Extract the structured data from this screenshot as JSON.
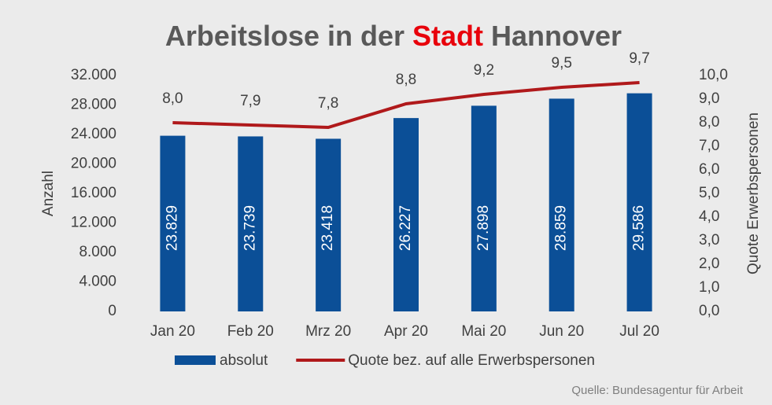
{
  "chart_data": {
    "type": "bar",
    "title": [
      {
        "text": "Arbeitslose in der",
        "color": "#595959"
      },
      {
        "text": "Stadt",
        "color": "#e8000b"
      },
      {
        "text": "Hannover",
        "color": "#595959"
      }
    ],
    "categories": [
      "Jan 20",
      "Feb 20",
      "Mrz 20",
      "Apr 20",
      "Mai 20",
      "Jun 20",
      "Jul 20"
    ],
    "series": [
      {
        "name": "absolut",
        "type": "bar",
        "color": "#0b4f97",
        "values": [
          23829,
          23739,
          23418,
          26227,
          27898,
          28859,
          29586
        ],
        "value_labels": [
          "23.829",
          "23.739",
          "23.418",
          "26.227",
          "27.898",
          "28.859",
          "29.586"
        ]
      },
      {
        "name": "Quote bez. auf alle Erwerbspersonen",
        "type": "line",
        "axis": "y2",
        "color": "#b0191b",
        "values": [
          8.0,
          7.9,
          7.8,
          8.8,
          9.2,
          9.5,
          9.7
        ],
        "value_labels": [
          "8,0",
          "7,9",
          "7,8",
          "8,8",
          "9,2",
          "9,5",
          "9,7"
        ]
      }
    ],
    "ylabel": "Anzahl",
    "y2label": "Quote Erwerbspersonen",
    "ylim": [
      0,
      32000
    ],
    "yticks": [
      0,
      {
        "value": 4000,
        "label": "4.000"
      },
      {
        "value": 8000,
        "label": "8.000"
      },
      {
        "value": 12000,
        "label": "12.000"
      },
      {
        "value": 16000,
        "label": "16.000"
      },
      {
        "value": 20000,
        "label": "20.000"
      },
      {
        "value": 24000,
        "label": "24.000"
      },
      {
        "value": 28000,
        "label": "28.000"
      },
      {
        "value": 32000,
        "label": "32.000"
      }
    ],
    "y2lim": [
      0,
      10
    ],
    "y2ticks": [
      {
        "value": 0,
        "label": "0,0"
      },
      {
        "value": 1,
        "label": "1,0"
      },
      {
        "value": 2,
        "label": "2,0"
      },
      {
        "value": 3,
        "label": "3,0"
      },
      {
        "value": 4,
        "label": "4,0"
      },
      {
        "value": 5,
        "label": "5,0"
      },
      {
        "value": 6,
        "label": "6,0"
      },
      {
        "value": 7,
        "label": "7,0"
      },
      {
        "value": 8,
        "label": "8,0"
      },
      {
        "value": 9,
        "label": "9,0"
      },
      {
        "value": 10,
        "label": "10,0"
      }
    ],
    "legend": "bottom",
    "source": "Quelle: Bundesagentur für Arbeit"
  }
}
